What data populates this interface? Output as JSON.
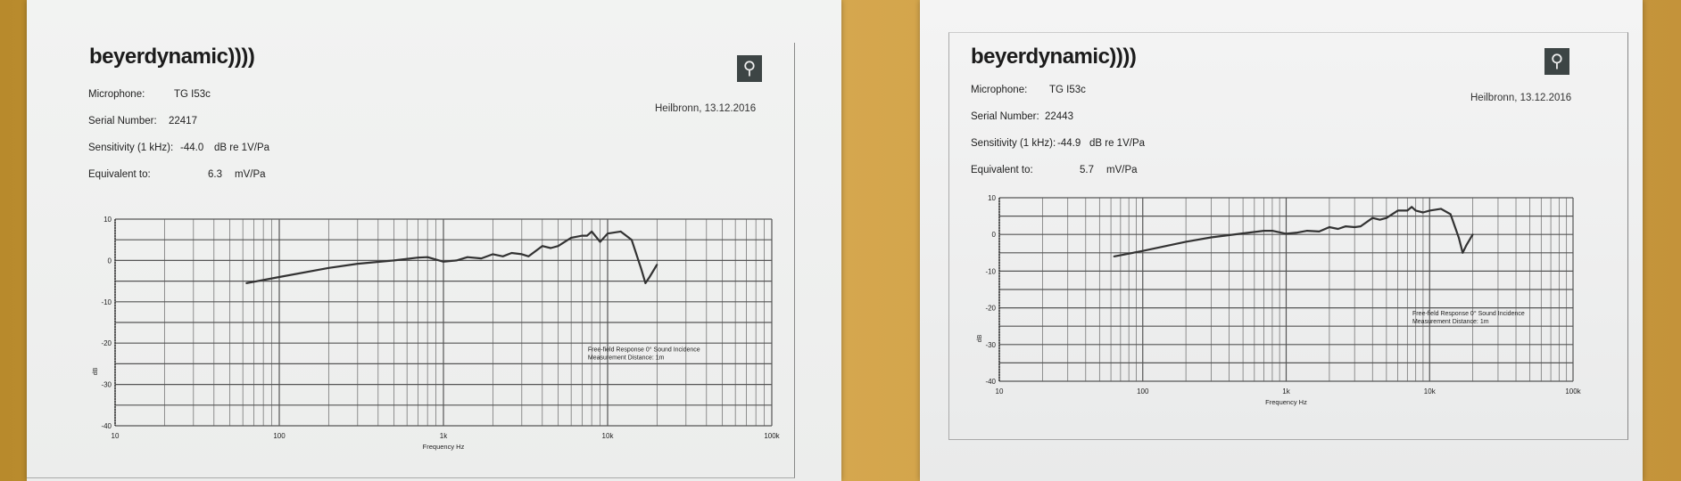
{
  "sheets": [
    {
      "logo": "beyerdynamic))))",
      "microphone_label": "Microphone:",
      "microphone": "TG I53c",
      "serial_label": "Serial Number:",
      "serial": "22417",
      "sensitivity_label": "Sensitivity (1 kHz):",
      "sensitivity": "-44.0",
      "sensitivity_unit": "dB re 1V/Pa",
      "equivalent_label": "Equivalent to:",
      "equivalent": "6.3",
      "equivalent_unit": "mV/Pa",
      "place_date": "Heilbronn,   13.12.2016",
      "mic_icon": "microphone-icon"
    },
    {
      "logo": "beyerdynamic))))",
      "microphone_label": "Microphone:",
      "microphone": "TG I53c",
      "serial_label": "Serial Number:",
      "serial": "22443",
      "sensitivity_label": "Sensitivity (1 kHz):",
      "sensitivity": "-44.9",
      "sensitivity_unit": "dB re 1V/Pa",
      "equivalent_label": "Equivalent to:",
      "equivalent": "5.7",
      "equivalent_unit": "mV/Pa",
      "place_date": "Heilbronn,   13.12.2016",
      "mic_icon": "microphone-icon"
    }
  ],
  "chart_data": [
    {
      "type": "line",
      "xlabel": "Frequency Hz",
      "ylabel": "dB",
      "xscale": "log",
      "xlim": [
        10,
        100000
      ],
      "ylim": [
        -40,
        10
      ],
      "xticks": [
        "10",
        "100",
        "1k",
        "10k",
        "100k"
      ],
      "xtick_values": [
        10,
        100,
        1000,
        10000,
        100000
      ],
      "yticks": [
        "10",
        "0",
        "-10",
        "-20",
        "-30",
        "-40"
      ],
      "ytick_values": [
        10,
        0,
        -10,
        -20,
        -30,
        -40
      ],
      "grid": true,
      "annotation": [
        "Free-field Response   0° Sound Incidence",
        "Measurement Distance:  1m"
      ],
      "line_color": "#333333",
      "x": [
        63,
        100,
        200,
        300,
        500,
        700,
        800,
        1000,
        1200,
        1400,
        1700,
        2000,
        2300,
        2600,
        3000,
        3300,
        4000,
        4500,
        5000,
        6000,
        7000,
        7500,
        8000,
        9000,
        10000,
        12000,
        14000,
        16000,
        17000,
        18000,
        20000
      ],
      "y": [
        -5.5,
        -4,
        -1.8,
        -0.8,
        0,
        0.7,
        0.8,
        -0.3,
        0,
        0.8,
        0.5,
        1.5,
        1,
        1.8,
        1.5,
        1,
        3.5,
        3,
        3.5,
        5.5,
        6,
        6,
        7,
        4.5,
        6.5,
        7,
        5,
        -2,
        -5.5,
        -4,
        -1
      ]
    },
    {
      "type": "line",
      "xlabel": "Frequency Hz",
      "ylabel": "dB",
      "xscale": "log",
      "xlim": [
        10,
        100000
      ],
      "ylim": [
        -40,
        10
      ],
      "xticks": [
        "10",
        "100",
        "1k",
        "10k",
        "100k"
      ],
      "xtick_values": [
        10,
        100,
        1000,
        10000,
        100000
      ],
      "yticks": [
        "10",
        "0",
        "-10",
        "-20",
        "-30",
        "-40"
      ],
      "ytick_values": [
        10,
        0,
        -10,
        -20,
        -30,
        -40
      ],
      "grid": true,
      "annotation": [
        "Free-field Response   0° Sound Incidence",
        "Measurement Distance:  1m"
      ],
      "line_color": "#333333",
      "x": [
        63,
        100,
        200,
        300,
        500,
        700,
        800,
        1000,
        1200,
        1400,
        1700,
        2000,
        2300,
        2600,
        3000,
        3300,
        4000,
        4500,
        5000,
        6000,
        7000,
        7500,
        8000,
        9000,
        10000,
        12000,
        14000,
        16000,
        17000,
        18000,
        20000
      ],
      "y": [
        -6,
        -4.5,
        -2,
        -0.8,
        0.3,
        1,
        1,
        0.2,
        0.5,
        1,
        0.8,
        2,
        1.5,
        2.2,
        2,
        2.2,
        4.5,
        4,
        4.5,
        6.5,
        6.5,
        7.5,
        6.5,
        6,
        6.5,
        7,
        5.5,
        -1,
        -5,
        -3,
        0
      ]
    }
  ]
}
